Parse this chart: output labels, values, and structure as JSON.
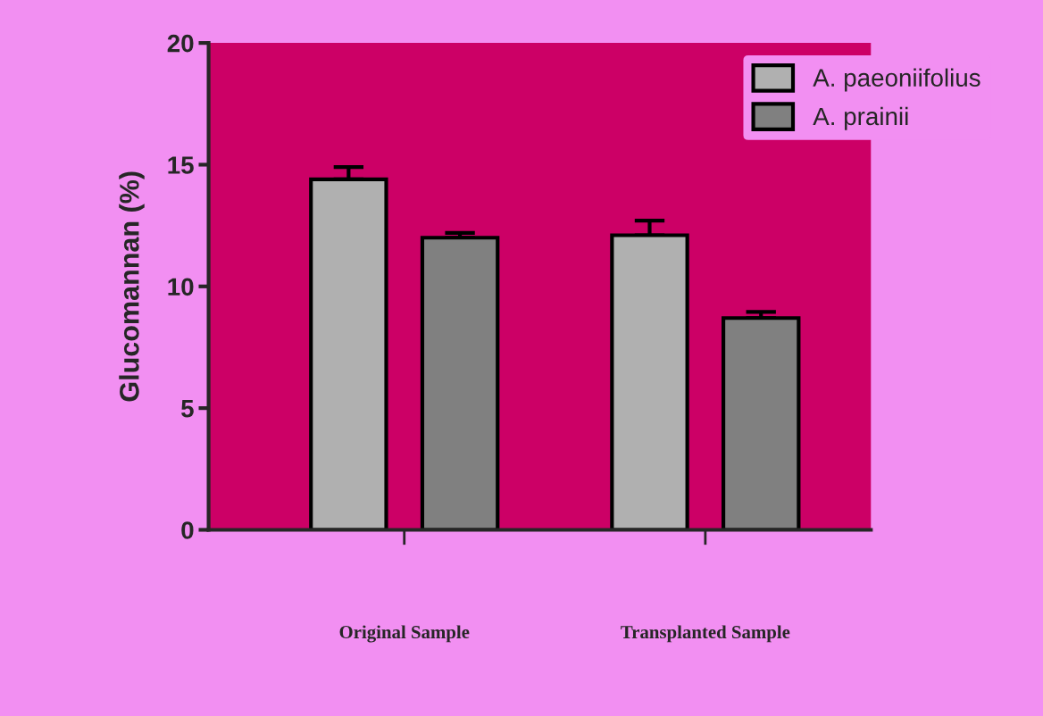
{
  "chart_data": {
    "type": "bar",
    "ylabel": "Glucomannan (%)",
    "categories": [
      "Original Sample",
      "Transplanted Sample"
    ],
    "series": [
      {
        "name": "A. paeoniifolius",
        "color": "#b0b0b0",
        "values": [
          14.4,
          12.1
        ],
        "errors": [
          0.5,
          0.6
        ]
      },
      {
        "name": "A. prainii",
        "color": "#808080",
        "values": [
          12.0,
          8.7
        ],
        "errors": [
          0.2,
          0.25
        ]
      }
    ],
    "ylim": [
      0,
      20
    ],
    "yticks": [
      0,
      5,
      10,
      15,
      20
    ],
    "grid": false,
    "legend": "top right"
  }
}
